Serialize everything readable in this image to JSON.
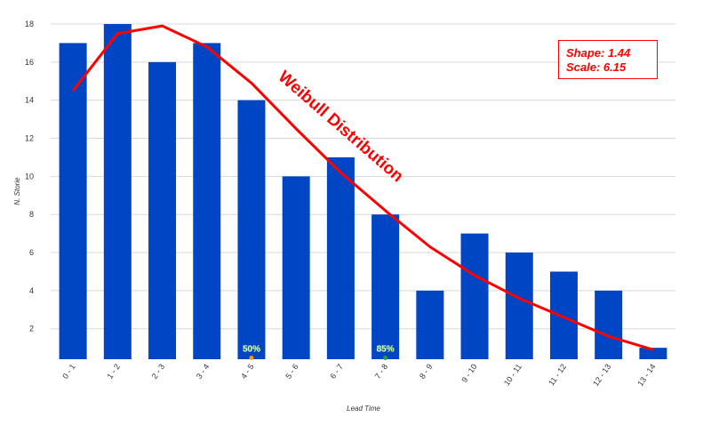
{
  "chart_data": {
    "type": "bar",
    "title": "",
    "xlabel": "Lead Time",
    "ylabel": "N. Storie",
    "categories": [
      "0 - 1",
      "1 - 2",
      "2 - 3",
      "3 - 4",
      "4 - 5",
      "5 - 6",
      "6 - 7",
      "7 - 8",
      "8 - 9",
      "9 - 10",
      "10 - 11",
      "11 - 12",
      "12 - 13",
      "13 - 14"
    ],
    "values": [
      17,
      18,
      16,
      17,
      14,
      10,
      11,
      8,
      4,
      7,
      6,
      5,
      4,
      1
    ],
    "ylim": [
      0.4,
      18
    ],
    "yticks": [
      2,
      4,
      6,
      8,
      10,
      12,
      14,
      16,
      18
    ],
    "grid": true,
    "bar_color": "#0046c4",
    "fit": {
      "name": "Weibull Distribution",
      "color": "#ff0000",
      "values": [
        14.5,
        17.5,
        17.9,
        16.8,
        14.9,
        12.5,
        10.2,
        8.2,
        6.3,
        4.8,
        3.6,
        2.6,
        1.6,
        0.9
      ]
    },
    "parameters": {
      "shape_label": "Shape: 1.44",
      "scale_label": "Scale: 6.15"
    },
    "markers": [
      {
        "category": "4 - 5",
        "label": "50%",
        "color": "#ff9900",
        "value": 0.75
      },
      {
        "category": "7 - 8",
        "label": "85%",
        "color": "#2ca02c",
        "value": 0.75
      }
    ]
  }
}
